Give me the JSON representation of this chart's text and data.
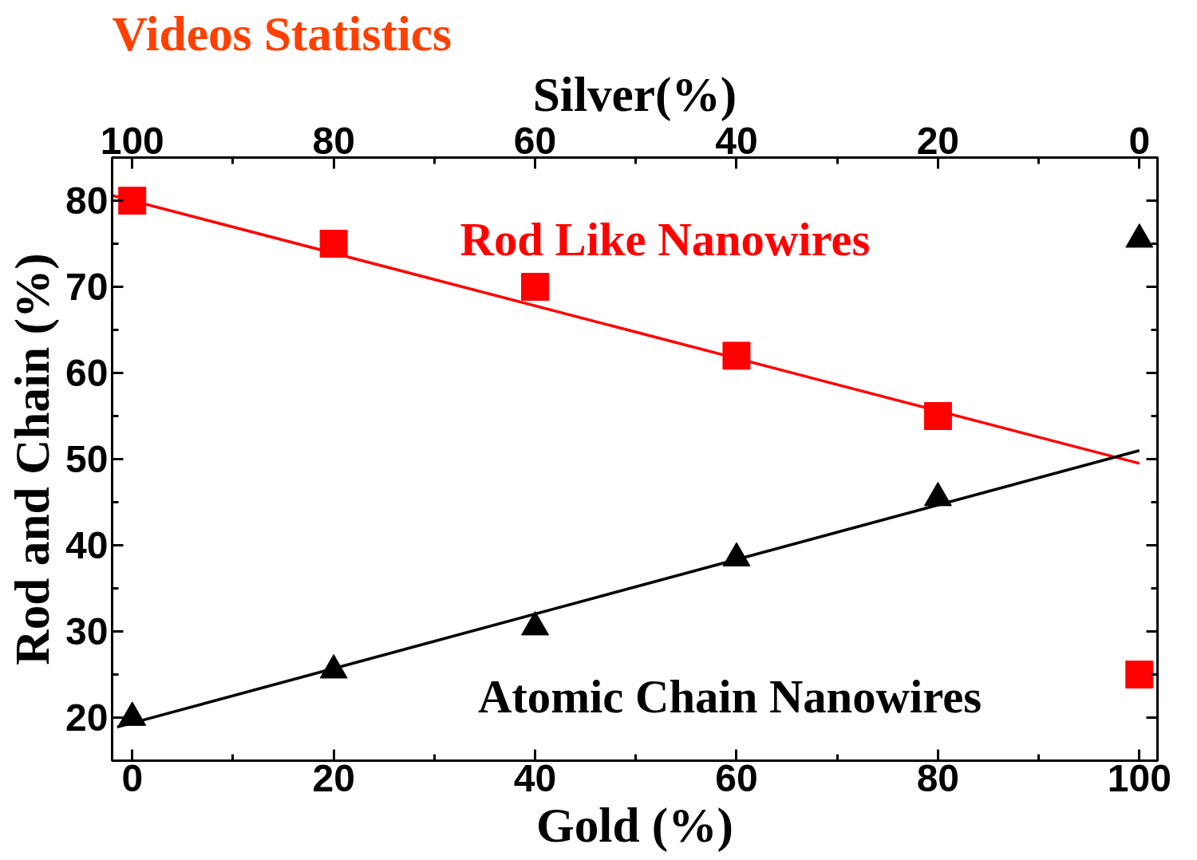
{
  "chart_data": {
    "type": "scatter",
    "title": "Videos Statistics",
    "xlabel": "Gold (%)",
    "ylabel": "Rod and Chain (%)",
    "x2label": "Silver(%)",
    "x": [
      0,
      20,
      40,
      60,
      80,
      100
    ],
    "series": [
      {
        "name": "Rod Like Nanowires",
        "color": "#ff0000",
        "marker": "square",
        "values": [
          80,
          75,
          70,
          62,
          55,
          25
        ]
      },
      {
        "name": "Atomic Chain Nanowires",
        "color": "#000000",
        "marker": "triangle",
        "values": [
          20,
          25.5,
          30.5,
          38.5,
          45.5,
          75.5
        ]
      },
      {
        "type": "line",
        "color": "#ff0000",
        "x": [
          -2,
          100
        ],
        "values": [
          80.6,
          49.5
        ]
      },
      {
        "type": "line",
        "color": "#000000",
        "x": [
          -1.5,
          100
        ],
        "values": [
          18.9,
          51
        ]
      }
    ],
    "xlim": [
      -2,
      101.8
    ],
    "ylim": [
      15,
      85
    ],
    "x2lim": [
      102,
      -1.8
    ],
    "xticks": [
      0,
      {
        "value": 10,
        "label": null
      },
      20,
      {
        "value": 30,
        "label": null
      },
      40,
      {
        "value": 50,
        "label": null
      },
      60,
      {
        "value": 70,
        "label": null
      },
      80,
      {
        "value": 90,
        "label": null
      },
      100
    ],
    "x2ticks": [
      100,
      {
        "value": 90,
        "label": null
      },
      80,
      {
        "value": 70,
        "label": null
      },
      60,
      {
        "value": 50,
        "label": null
      },
      40,
      {
        "value": 30,
        "label": null
      },
      20,
      {
        "value": 10,
        "label": null
      },
      0
    ],
    "yticks": [
      20,
      {
        "value": 25,
        "label": null
      },
      30,
      {
        "value": 35,
        "label": null
      },
      40,
      {
        "value": 45,
        "label": null
      },
      50,
      {
        "value": 55,
        "label": null
      },
      60,
      {
        "value": 65,
        "label": null
      },
      70,
      {
        "value": 75,
        "label": null
      },
      80
    ],
    "grid": false
  }
}
